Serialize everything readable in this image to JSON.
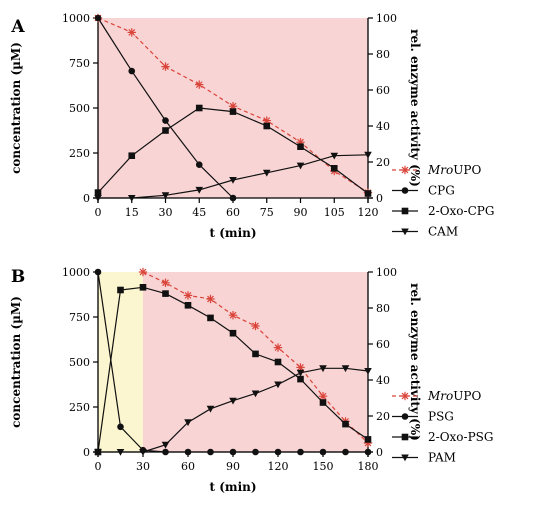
{
  "chart_data": [
    {
      "panel_label": "A",
      "type": "line",
      "xlabel": "t (min)",
      "ylabel": "concentration (µM)",
      "y2label": "rel. enzyme activity (%)",
      "xlim": [
        0,
        120
      ],
      "ylim": [
        0,
        1000
      ],
      "y2lim": [
        0,
        100
      ],
      "xticks": [
        0,
        15,
        30,
        45,
        60,
        75,
        90,
        105,
        120
      ],
      "yticks": [
        0,
        250,
        500,
        750,
        1000
      ],
      "y2ticks": [
        0,
        20,
        40,
        60,
        80,
        100
      ],
      "shaded_regions": [
        {
          "x": [
            0,
            120
          ],
          "color": "#f9d4d4"
        }
      ],
      "grid": false,
      "legend_position": "right",
      "series": [
        {
          "name": "MroUPO",
          "name_italic": "Mro",
          "name_rest": "UPO",
          "axis": "right",
          "marker": "asterisk",
          "line": "dashed",
          "color": "#d9443a",
          "x": [
            0,
            15,
            30,
            45,
            60,
            75,
            90,
            105,
            120
          ],
          "y": [
            100,
            92,
            73,
            63,
            51,
            43,
            31,
            15,
            3
          ]
        },
        {
          "name": "CPG",
          "axis": "left",
          "marker": "circle",
          "line": "solid",
          "color": "#111111",
          "x": [
            0,
            15,
            30,
            45,
            60
          ],
          "y": [
            1000,
            705,
            430,
            185,
            0
          ]
        },
        {
          "name": "2-Oxo-CPG",
          "axis": "left",
          "marker": "square",
          "line": "solid",
          "color": "#111111",
          "x": [
            0,
            15,
            30,
            45,
            60,
            75,
            90,
            105,
            120
          ],
          "y": [
            30,
            235,
            375,
            500,
            480,
            400,
            285,
            165,
            25
          ]
        },
        {
          "name": "CAM",
          "axis": "left",
          "marker": "triangle-down",
          "line": "solid",
          "color": "#111111",
          "x": [
            0,
            15,
            30,
            45,
            60,
            75,
            90,
            105,
            120
          ],
          "y": [
            0,
            0,
            15,
            45,
            100,
            140,
            180,
            235,
            240
          ]
        }
      ]
    },
    {
      "panel_label": "B",
      "type": "line",
      "xlabel": "t (min)",
      "ylabel": "concentration (µM)",
      "y2label": "rel. enzyme activity (%)",
      "xlim": [
        0,
        180
      ],
      "ylim": [
        0,
        1000
      ],
      "y2lim": [
        0,
        100
      ],
      "xticks": [
        0,
        30,
        60,
        90,
        120,
        150,
        180
      ],
      "yticks": [
        0,
        250,
        500,
        750,
        1000
      ],
      "y2ticks": [
        0,
        20,
        40,
        60,
        80,
        100
      ],
      "shaded_regions": [
        {
          "x": [
            0,
            30
          ],
          "color": "#fbf6cf"
        },
        {
          "x": [
            30,
            180
          ],
          "color": "#f9d4d4"
        }
      ],
      "grid": false,
      "legend_position": "right",
      "series": [
        {
          "name": "MroUPO",
          "name_italic": "Mro",
          "name_rest": "UPO",
          "axis": "right",
          "marker": "asterisk",
          "line": "dashed",
          "color": "#d9443a",
          "x": [
            30,
            45,
            60,
            75,
            90,
            105,
            120,
            135,
            150,
            165,
            180
          ],
          "y": [
            100,
            94,
            87,
            85,
            76,
            70,
            58,
            47,
            31,
            17,
            5
          ]
        },
        {
          "name": "PSG",
          "axis": "left",
          "marker": "circle",
          "line": "solid",
          "color": "#111111",
          "x": [
            0,
            15,
            30,
            45,
            60,
            75,
            90,
            105,
            120,
            135,
            150,
            165,
            180
          ],
          "y": [
            1000,
            140,
            10,
            0,
            0,
            0,
            0,
            0,
            0,
            0,
            0,
            0,
            0
          ]
        },
        {
          "name": "2-Oxo-PSG",
          "axis": "left",
          "marker": "square",
          "line": "solid",
          "color": "#111111",
          "x": [
            0,
            15,
            30,
            45,
            60,
            75,
            90,
            105,
            120,
            135,
            150,
            165,
            180
          ],
          "y": [
            0,
            900,
            915,
            880,
            815,
            745,
            660,
            545,
            500,
            405,
            275,
            155,
            70
          ]
        },
        {
          "name": "PAM",
          "axis": "left",
          "marker": "triangle-down",
          "line": "solid",
          "color": "#111111",
          "x": [
            0,
            15,
            30,
            45,
            60,
            75,
            90,
            105,
            120,
            135,
            150,
            165,
            180
          ],
          "y": [
            0,
            0,
            0,
            40,
            165,
            240,
            285,
            325,
            375,
            440,
            465,
            465,
            450
          ]
        }
      ]
    }
  ]
}
